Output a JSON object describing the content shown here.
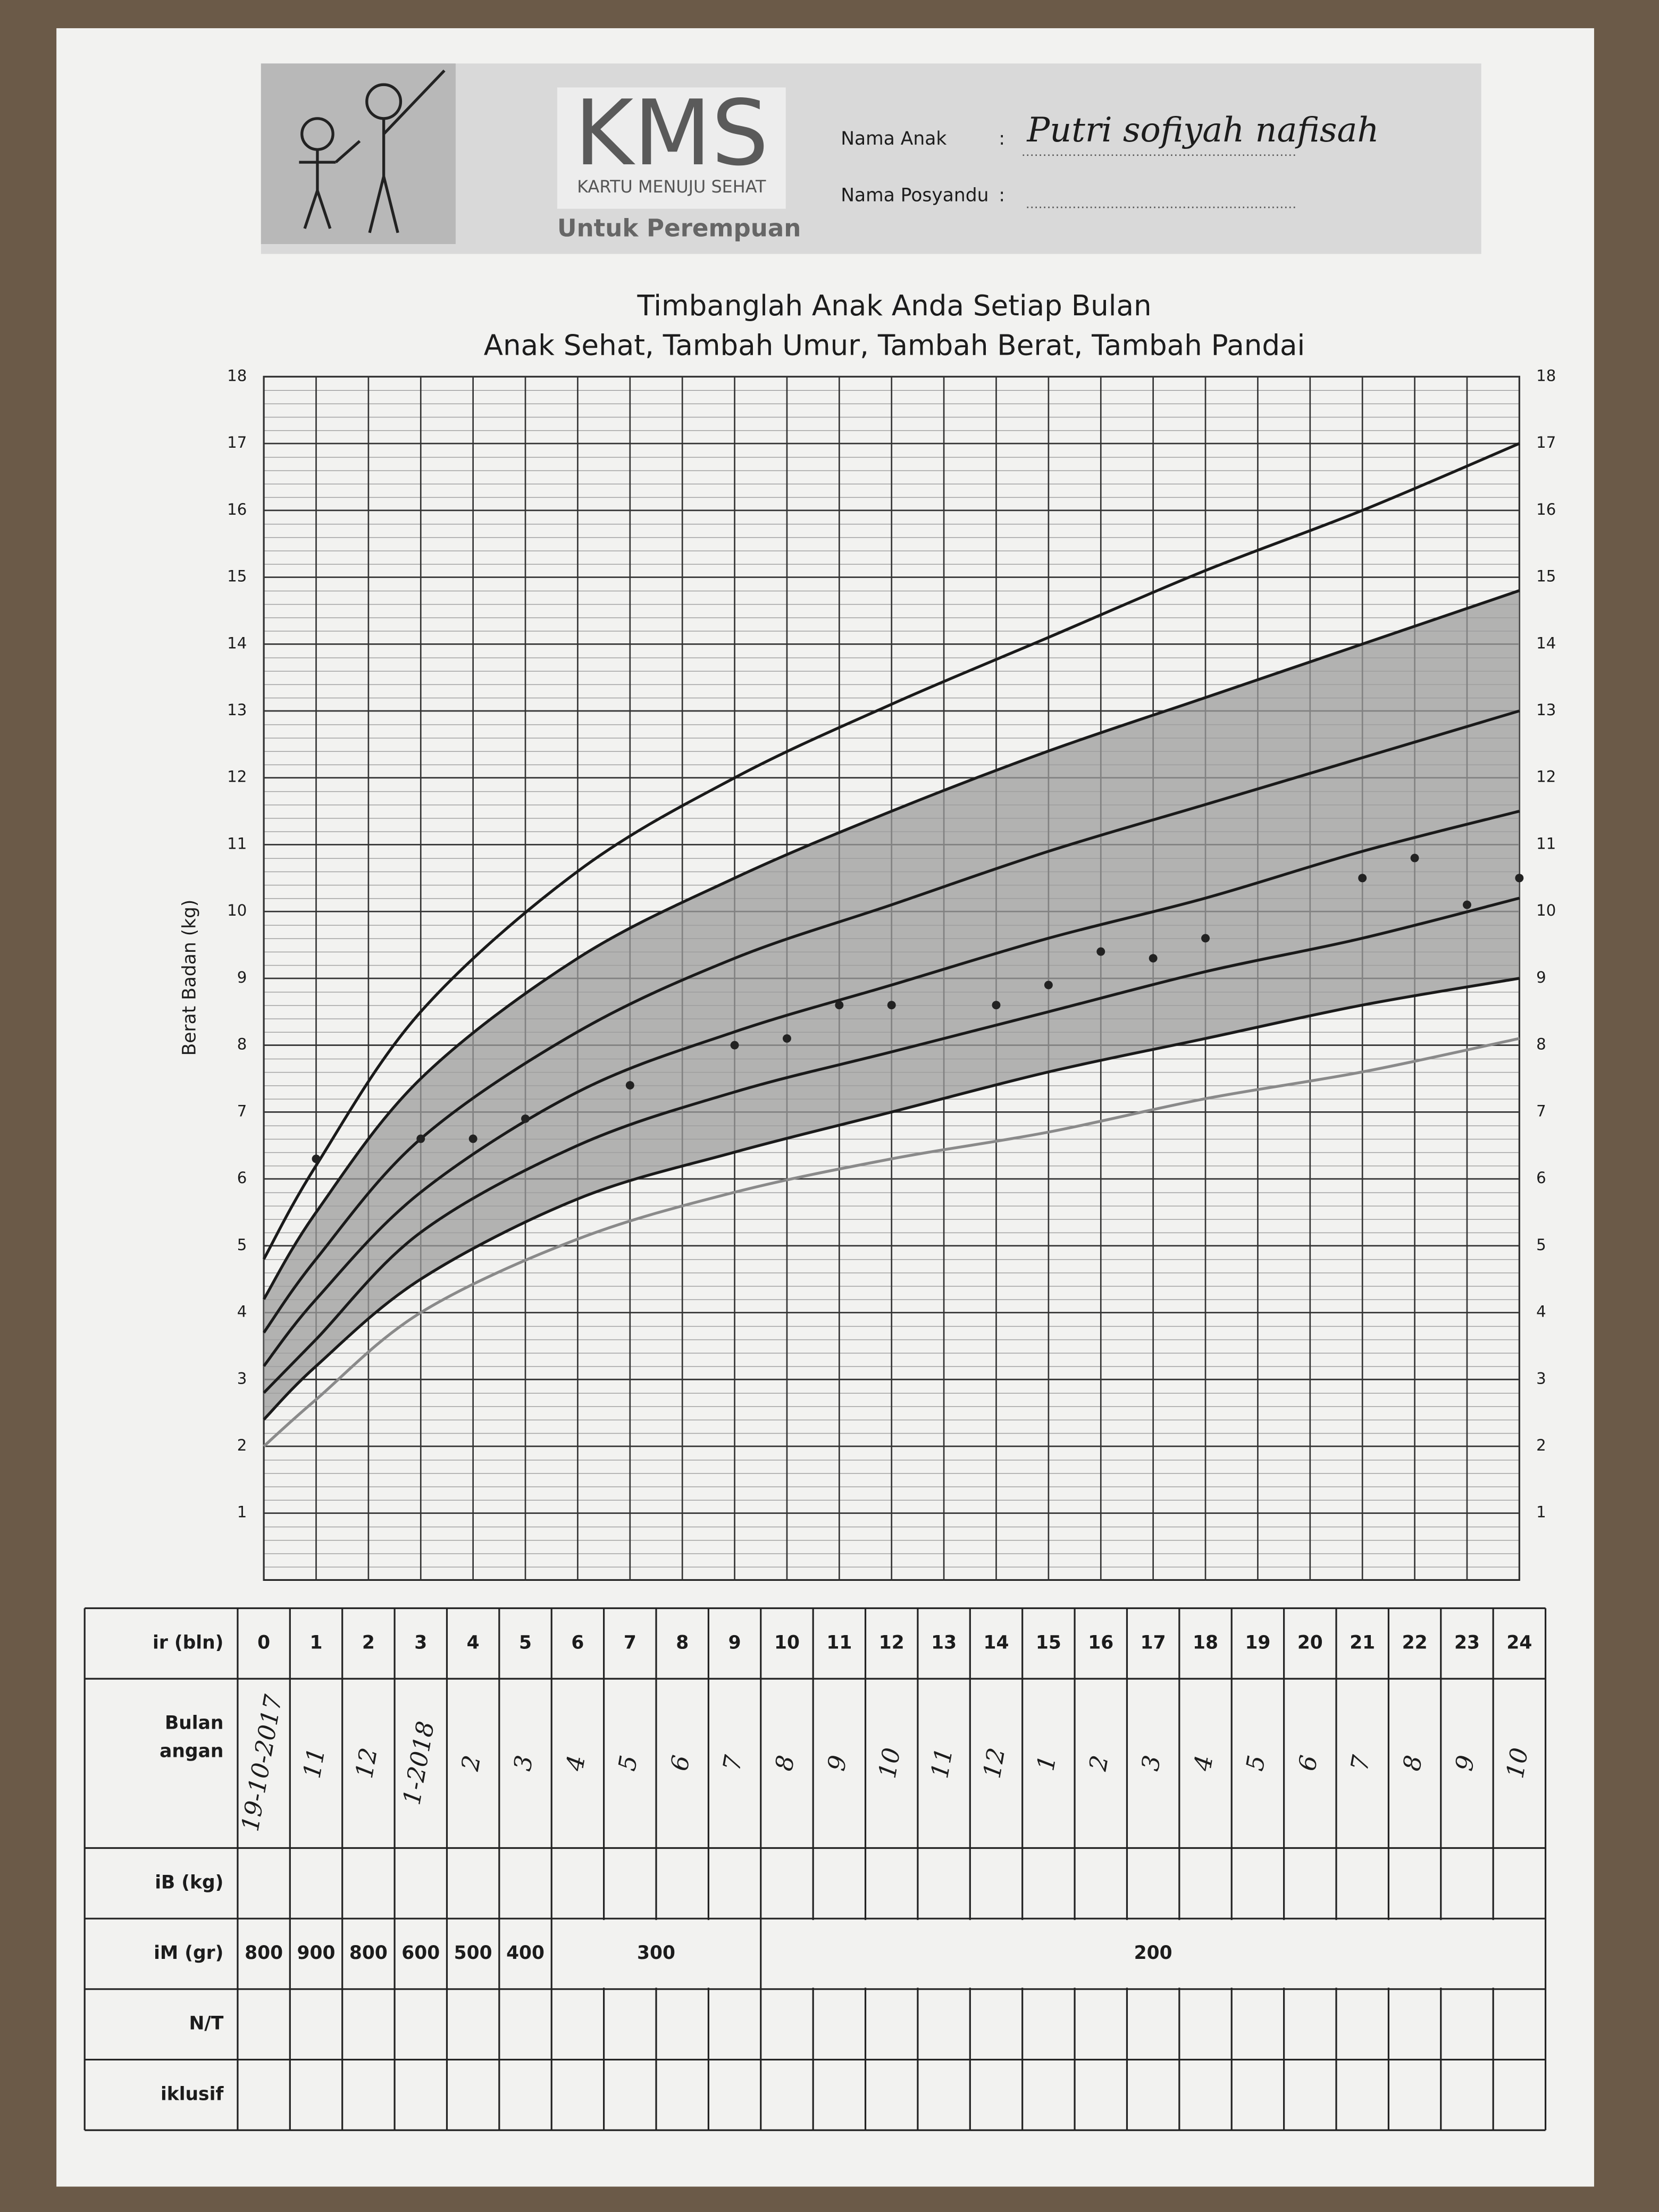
{
  "header": {
    "logo": "KMS",
    "logo_subtitle": "KARTU MENUJU SEHAT",
    "gender": "Untuk Perempuan",
    "name_label": "Nama Anak",
    "name_colon": ":",
    "name_value": "Putri sofiyah nafisah",
    "posyandu_label": "Nama Posyandu",
    "posyandu_colon": ":"
  },
  "chart_data": {
    "type": "line",
    "title": "Timbanglah Anak Anda Setiap Bulan",
    "subtitle": "Anak Sehat, Tambah Umur, Tambah Berat, Tambah Pandai",
    "y_label": "Berat Badan (kg)",
    "xlim": [
      0,
      24
    ],
    "xticks": [
      0,
      1,
      2,
      3,
      4,
      5,
      6,
      7,
      8,
      9,
      10,
      11,
      12,
      13,
      14,
      15,
      16,
      17,
      18,
      19,
      20,
      21,
      22,
      23,
      24
    ],
    "ylim": [
      0,
      18
    ],
    "yticks": [
      1,
      2,
      3,
      4,
      5,
      6,
      7,
      8,
      9,
      10,
      11,
      12,
      13,
      14,
      15,
      16,
      17,
      18
    ],
    "grid": true,
    "band_color": "#9c9c9c",
    "series": [
      {
        "color": "#1a1a1a",
        "x": [
          0,
          1,
          3,
          6,
          9,
          12,
          15,
          18,
          21,
          24
        ],
        "values": [
          4.8,
          6.2,
          8.5,
          10.6,
          12.0,
          13.1,
          14.1,
          15.1,
          16.0,
          17.0
        ]
      },
      {
        "color": "#1a1a1a",
        "band": "top",
        "x": [
          0,
          1,
          3,
          6,
          9,
          12,
          15,
          18,
          21,
          24
        ],
        "values": [
          4.2,
          5.5,
          7.5,
          9.3,
          10.5,
          11.5,
          12.4,
          13.2,
          14.0,
          14.8
        ]
      },
      {
        "color": "#1a1a1a",
        "x": [
          0,
          1,
          3,
          6,
          9,
          12,
          15,
          18,
          21,
          24
        ],
        "values": [
          3.7,
          4.8,
          6.6,
          8.2,
          9.3,
          10.1,
          10.9,
          11.6,
          12.3,
          13.0
        ]
      },
      {
        "color": "#1a1a1a",
        "x": [
          0,
          1,
          3,
          6,
          9,
          12,
          15,
          18,
          21,
          24
        ],
        "values": [
          3.2,
          4.2,
          5.8,
          7.3,
          8.2,
          8.9,
          9.6,
          10.2,
          10.9,
          11.5
        ]
      },
      {
        "color": "#1a1a1a",
        "x": [
          0,
          1,
          3,
          6,
          9,
          12,
          15,
          18,
          21,
          24
        ],
        "values": [
          2.8,
          3.6,
          5.2,
          6.5,
          7.3,
          7.9,
          8.5,
          9.1,
          9.6,
          10.2
        ]
      },
      {
        "color": "#1a1a1a",
        "band": "bottom",
        "x": [
          0,
          1,
          3,
          6,
          9,
          12,
          15,
          18,
          21,
          24
        ],
        "values": [
          2.4,
          3.2,
          4.5,
          5.7,
          6.4,
          7.0,
          7.6,
          8.1,
          8.6,
          9.0
        ]
      },
      {
        "color": "#8a8a8a",
        "x": [
          0,
          1,
          3,
          6,
          9,
          12,
          15,
          18,
          21,
          24
        ],
        "values": [
          2.0,
          2.7,
          4.0,
          5.1,
          5.8,
          6.3,
          6.7,
          7.2,
          7.6,
          8.1
        ]
      },
      {
        "color": "#222222",
        "mode": "markers",
        "x": [
          1,
          3,
          4,
          5,
          7,
          9,
          10,
          11,
          12,
          14,
          15,
          16,
          17,
          18,
          21,
          22,
          23,
          24
        ],
        "values": [
          6.3,
          6.6,
          6.6,
          6.9,
          7.4,
          8.0,
          8.1,
          8.6,
          8.6,
          8.6,
          8.9,
          9.4,
          9.3,
          9.6,
          10.5,
          10.8,
          10.1,
          10.5
        ]
      }
    ]
  },
  "table": {
    "row_labels": [
      "ir (bln)",
      "Bulan",
      "angan",
      "iB (kg)",
      "iM (gr)",
      "N/T",
      "iklusif"
    ],
    "handwritten": [
      "19-10-2017",
      "11",
      "12",
      "1-2018",
      "2",
      "3",
      "4",
      "5",
      "6",
      "7",
      "8",
      "9",
      "10",
      "11",
      "12",
      "1",
      "2",
      "3",
      "4",
      "5",
      "6",
      "7",
      "8",
      "9",
      "10"
    ],
    "kbm": [
      "800",
      "900",
      "800",
      "600",
      "500",
      "400",
      "300",
      "200"
    ]
  }
}
